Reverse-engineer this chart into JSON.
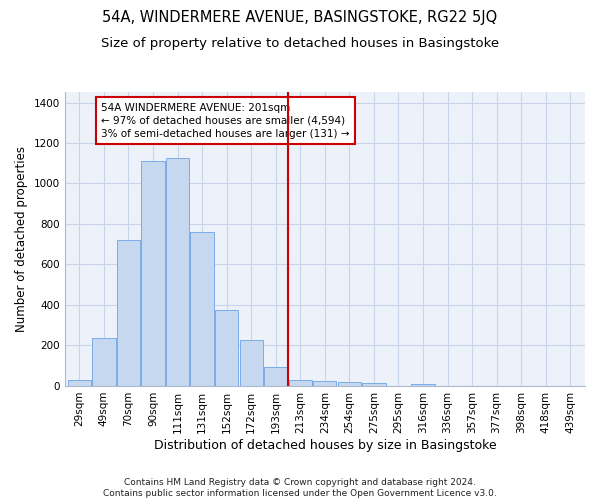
{
  "title": "54A, WINDERMERE AVENUE, BASINGSTOKE, RG22 5JQ",
  "subtitle": "Size of property relative to detached houses in Basingstoke",
  "xlabel": "Distribution of detached houses by size in Basingstoke",
  "ylabel": "Number of detached properties",
  "footer_line1": "Contains HM Land Registry data © Crown copyright and database right 2024.",
  "footer_line2": "Contains public sector information licensed under the Open Government Licence v3.0.",
  "categories": [
    "29sqm",
    "49sqm",
    "70sqm",
    "90sqm",
    "111sqm",
    "131sqm",
    "152sqm",
    "172sqm",
    "193sqm",
    "213sqm",
    "234sqm",
    "254sqm",
    "275sqm",
    "295sqm",
    "316sqm",
    "336sqm",
    "357sqm",
    "377sqm",
    "398sqm",
    "418sqm",
    "439sqm"
  ],
  "values": [
    30,
    235,
    720,
    1110,
    1125,
    760,
    375,
    225,
    90,
    30,
    25,
    20,
    15,
    0,
    10,
    0,
    0,
    0,
    0,
    0,
    0
  ],
  "bar_color": "#c5d8ef",
  "bar_edge_color": "#7aace6",
  "vline_x_index": 8.5,
  "vline_color": "#cc0000",
  "annotation_line1": "54A WINDERMERE AVENUE: 201sqm",
  "annotation_line2": "← 97% of detached houses are smaller (4,594)",
  "annotation_line3": "3% of semi-detached houses are larger (131) →",
  "ylim": [
    0,
    1450
  ],
  "yticks": [
    0,
    200,
    400,
    600,
    800,
    1000,
    1200,
    1400
  ],
  "grid_color": "#c8d4e8",
  "bg_color": "#edf1f9",
  "title_fontsize": 10.5,
  "subtitle_fontsize": 9.5,
  "xlabel_fontsize": 9,
  "ylabel_fontsize": 8.5,
  "tick_fontsize": 7.5,
  "footer_fontsize": 6.5
}
